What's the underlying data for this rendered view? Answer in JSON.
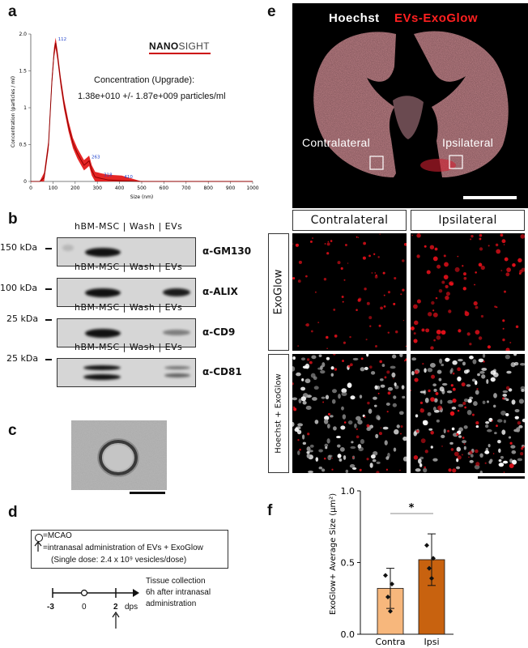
{
  "panel_letters": {
    "a": "a",
    "b": "b",
    "c": "c",
    "d": "d",
    "e": "e",
    "f": "f"
  },
  "panel_a": {
    "brand_bold": "NANO",
    "brand_light": "SIGHT",
    "conc_title": "Concentration (Upgrade):",
    "conc_value": "1.38e+010 +/- 1.87e+009 particles/ml",
    "xlabel": "Size (nm)",
    "ylabel": "Concentration (particles / ml)",
    "peak_labels": [
      "112",
      "263",
      "318",
      "410"
    ],
    "chart_data": {
      "type": "line",
      "xlim": [
        0,
        1000
      ],
      "ylim": [
        0,
        2.0
      ],
      "xticks": [
        0,
        100,
        200,
        300,
        400,
        500,
        600,
        700,
        800,
        900,
        1000
      ],
      "yticks": [
        0,
        0.5,
        1,
        1.5,
        2
      ],
      "ytick_labels": [
        "0",
        "0.5",
        "1",
        "1.5",
        "2.0"
      ],
      "x": [
        0,
        40,
        60,
        80,
        95,
        105,
        112,
        120,
        135,
        150,
        170,
        190,
        210,
        225,
        240,
        252,
        263,
        275,
        290,
        318,
        350,
        410,
        500,
        700,
        1000
      ],
      "y": [
        0,
        0,
        0.05,
        0.5,
        1.35,
        1.75,
        1.88,
        1.72,
        1.35,
        1.05,
        0.75,
        0.52,
        0.38,
        0.3,
        0.22,
        0.25,
        0.28,
        0.15,
        0.06,
        0.04,
        0.02,
        0.01,
        0,
        0,
        0
      ],
      "error_band": 0.07
    }
  },
  "panel_b": {
    "rows": [
      {
        "kda": "150 kDa",
        "antibody": "α-GM130",
        "bands": [
          "hbm"
        ]
      },
      {
        "kda": "100 kDa",
        "antibody": "α-ALIX",
        "bands": [
          "hbm",
          "evs"
        ]
      },
      {
        "kda": "25 kDa",
        "antibody": "α-CD9",
        "bands": [
          "hbm",
          "evs_weak"
        ]
      },
      {
        "kda": "25 kDa",
        "antibody": "α-CD81",
        "bands": [
          "hbm_double",
          "evs_double"
        ]
      }
    ],
    "lane_hbm": "hBM-MSC",
    "lane_wash": "Wash",
    "lane_evs": "EVs",
    "sep": "|"
  },
  "panel_d": {
    "legend_mcao": "=MCAO",
    "legend_admin": "=intranasal administration of EVs + ExoGlow",
    "legend_dose": "(Single dose: 2.4 x 10⁹ vesicles/dose)",
    "tick_minus3": "-3",
    "tick_0": "0",
    "tick_2": "2",
    "unit": "dps",
    "collection_line1": "Tissue collection",
    "collection_line2": "6h after intranasal",
    "collection_line3": "administration"
  },
  "panel_e": {
    "hoechst": "Hoechst",
    "exoglow": "EVs-ExoGlow",
    "contralateral": "Contralateral",
    "ipsilateral": "Ipsilateral",
    "col_contra": "Contralateral",
    "col_ipsi": "Ipsilateral",
    "row_exoglow": "ExoGlow",
    "row_merge": "Hoechst + ExoGlow"
  },
  "panel_f": {
    "ylabel": "ExoGlow+ Average Size (μm²)",
    "significance": "*",
    "chart_data": {
      "type": "bar",
      "categories": [
        "Contra",
        "Ipsi"
      ],
      "values": [
        0.32,
        0.52
      ],
      "errors": [
        0.14,
        0.18
      ],
      "points": [
        [
          0.41,
          0.35,
          0.26,
          0.16
        ],
        [
          0.62,
          0.53,
          0.46,
          0.39
        ]
      ],
      "ylim": [
        0,
        1.0
      ],
      "yticks": [
        0.0,
        0.5,
        1.0
      ],
      "ytick_labels": [
        "0.0",
        "0.5",
        "1.0"
      ],
      "colors": [
        "#f7b77c",
        "#c8620f"
      ]
    }
  }
}
